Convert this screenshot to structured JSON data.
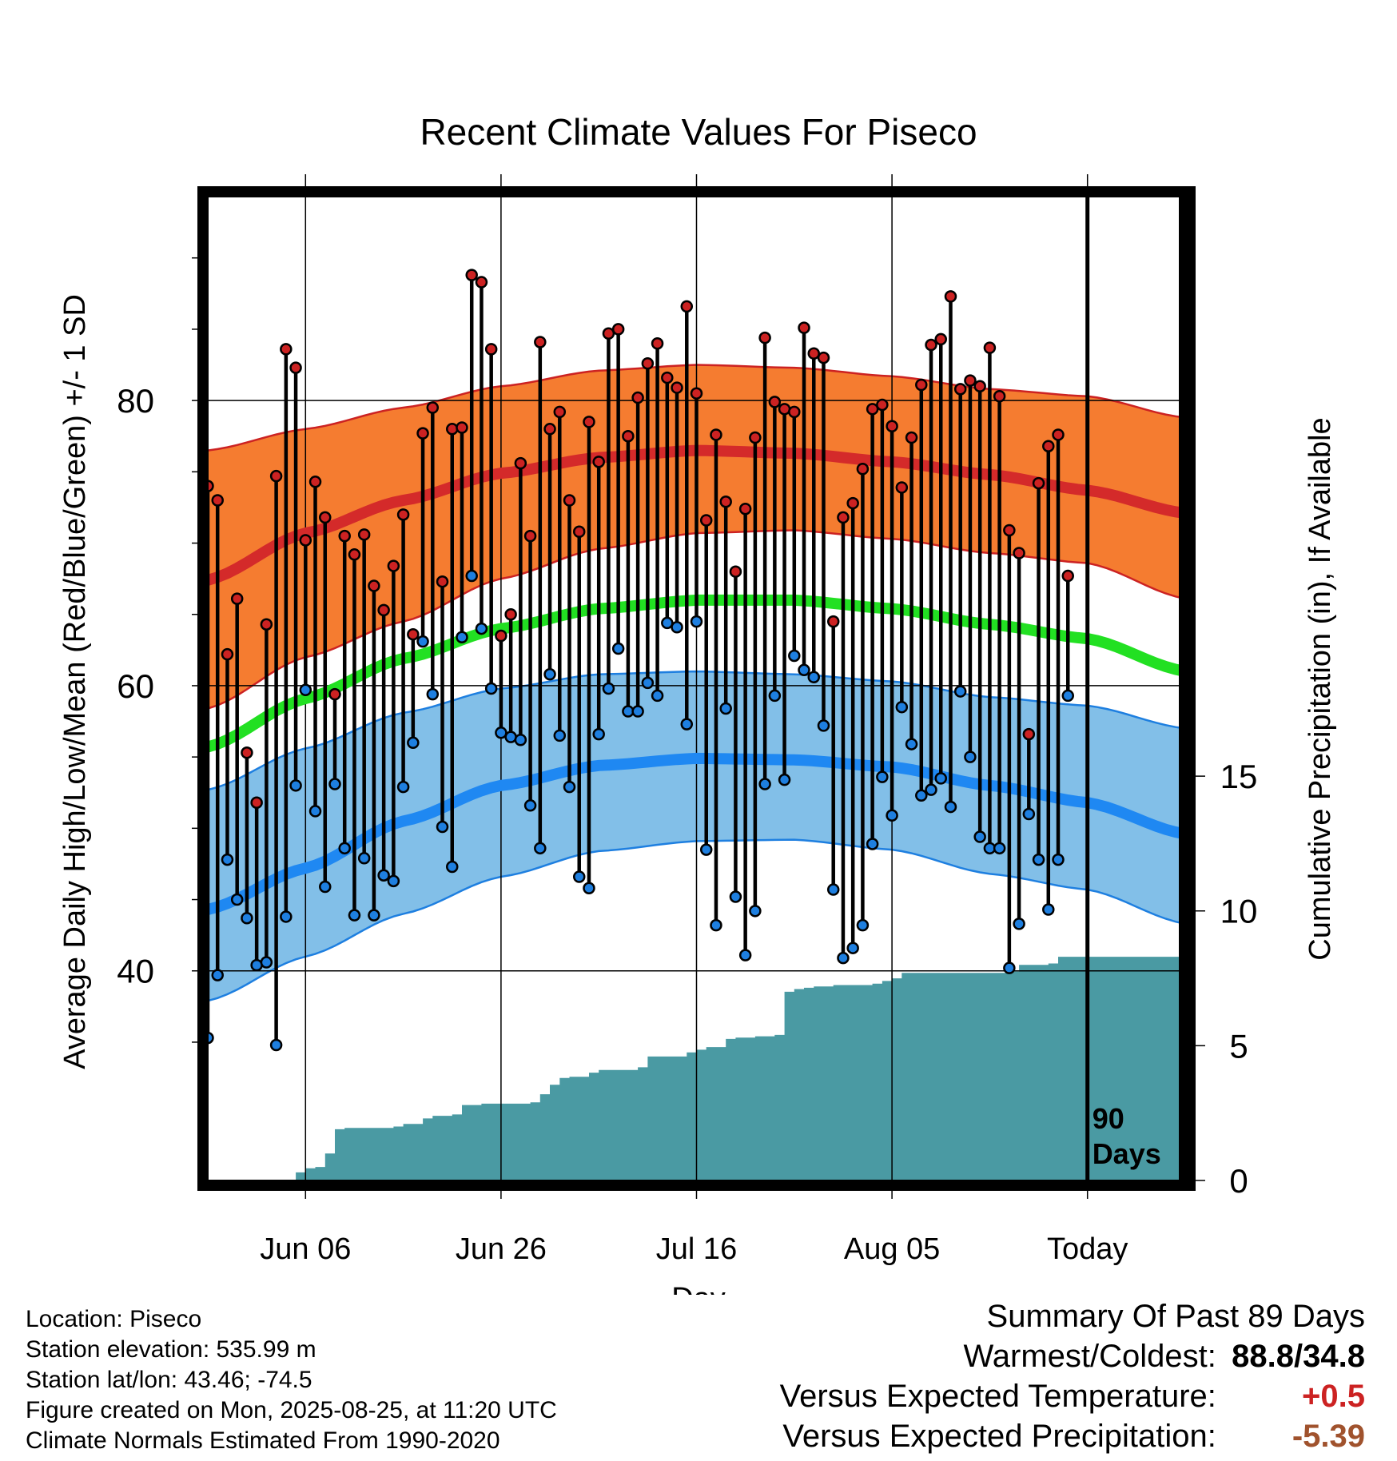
{
  "chart_data": {
    "type": "line",
    "title": "Recent Climate Values For Piseco",
    "xlabel": "Day",
    "ylabel": "Average Daily High/Low/Mean (Red/Blue/Green) +/- 1 SD",
    "y2label": "Cumulative Precipitation (in), If Available",
    "ylim": [
      25.3,
      94.3
    ],
    "y2lim": [
      0,
      36.5
    ],
    "yticks": [
      40,
      60,
      80
    ],
    "y2ticks": [
      0,
      5,
      10,
      15
    ],
    "x_range": [
      "2025-05-27",
      "2025-09-04"
    ],
    "xticks": [
      {
        "date": "2025-06-06",
        "label": "Jun 06"
      },
      {
        "date": "2025-06-26",
        "label": "Jun 26"
      },
      {
        "date": "2025-07-16",
        "label": "Jul 16"
      },
      {
        "date": "2025-08-05",
        "label": "Aug 05"
      },
      {
        "date": "2025-08-25",
        "label": "Today"
      }
    ],
    "window_marker": {
      "date": "2025-08-25",
      "label_line1": "90",
      "label_line2": "Days"
    },
    "grid": true,
    "series": [
      {
        "name": "High",
        "color": "#cc2222",
        "dates": [
          "2025-05-27",
          "2025-05-28",
          "2025-05-29",
          "2025-05-30",
          "2025-05-31",
          "2025-06-01",
          "2025-06-02",
          "2025-06-03",
          "2025-06-04",
          "2025-06-05",
          "2025-06-06",
          "2025-06-07",
          "2025-06-08",
          "2025-06-09",
          "2025-06-10",
          "2025-06-11",
          "2025-06-12",
          "2025-06-13",
          "2025-06-14",
          "2025-06-15",
          "2025-06-16",
          "2025-06-17",
          "2025-06-18",
          "2025-06-19",
          "2025-06-20",
          "2025-06-21",
          "2025-06-22",
          "2025-06-23",
          "2025-06-24",
          "2025-06-25",
          "2025-06-26",
          "2025-06-27",
          "2025-06-28",
          "2025-06-29",
          "2025-06-30",
          "2025-07-01",
          "2025-07-02",
          "2025-07-03",
          "2025-07-04",
          "2025-07-05",
          "2025-07-06",
          "2025-07-07",
          "2025-07-08",
          "2025-07-09",
          "2025-07-10",
          "2025-07-11",
          "2025-07-12",
          "2025-07-13",
          "2025-07-14",
          "2025-07-15",
          "2025-07-16",
          "2025-07-17",
          "2025-07-18",
          "2025-07-19",
          "2025-07-20",
          "2025-07-21",
          "2025-07-22",
          "2025-07-23",
          "2025-07-24",
          "2025-07-25",
          "2025-07-26",
          "2025-07-27",
          "2025-07-28",
          "2025-07-29",
          "2025-07-30",
          "2025-07-31",
          "2025-08-01",
          "2025-08-02",
          "2025-08-03",
          "2025-08-04",
          "2025-08-05",
          "2025-08-06",
          "2025-08-07",
          "2025-08-08",
          "2025-08-09",
          "2025-08-10",
          "2025-08-11",
          "2025-08-12",
          "2025-08-13",
          "2025-08-14",
          "2025-08-15",
          "2025-08-16",
          "2025-08-17",
          "2025-08-18",
          "2025-08-19",
          "2025-08-20",
          "2025-08-21",
          "2025-08-22",
          "2025-08-23"
        ],
        "values": [
          74.0,
          73.0,
          62.2,
          66.1,
          55.3,
          51.8,
          64.3,
          74.7,
          83.6,
          82.3,
          70.2,
          74.3,
          71.8,
          59.4,
          70.5,
          69.2,
          70.6,
          67.0,
          65.3,
          68.4,
          72.0,
          63.6,
          77.7,
          79.5,
          67.3,
          78.0,
          78.1,
          88.8,
          88.3,
          83.6,
          63.5,
          65.0,
          75.6,
          70.5,
          84.1,
          78.0,
          79.2,
          73.0,
          70.8,
          78.5,
          75.7,
          84.7,
          85.0,
          77.5,
          80.2,
          82.6,
          84.0,
          81.6,
          80.9,
          86.6,
          80.5,
          71.6,
          77.6,
          72.9,
          68.0,
          72.4,
          77.4,
          84.4,
          79.9,
          79.4,
          79.2,
          85.1,
          83.3,
          83.0,
          64.5,
          71.8,
          72.8,
          75.2,
          79.4,
          79.7,
          78.2,
          73.9,
          77.4,
          81.1,
          83.9,
          84.3,
          87.3,
          80.8,
          81.4,
          81.0,
          83.7,
          80.3,
          70.9,
          69.3,
          56.6,
          74.2,
          76.8,
          77.6,
          67.7
        ]
      },
      {
        "name": "Low",
        "color": "#1e7fe0",
        "dates": [
          "2025-05-27",
          "2025-05-28",
          "2025-05-29",
          "2025-05-30",
          "2025-05-31",
          "2025-06-01",
          "2025-06-02",
          "2025-06-03",
          "2025-06-04",
          "2025-06-05",
          "2025-06-06",
          "2025-06-07",
          "2025-06-08",
          "2025-06-09",
          "2025-06-10",
          "2025-06-11",
          "2025-06-12",
          "2025-06-13",
          "2025-06-14",
          "2025-06-15",
          "2025-06-16",
          "2025-06-17",
          "2025-06-18",
          "2025-06-19",
          "2025-06-20",
          "2025-06-21",
          "2025-06-22",
          "2025-06-23",
          "2025-06-24",
          "2025-06-25",
          "2025-06-26",
          "2025-06-27",
          "2025-06-28",
          "2025-06-29",
          "2025-06-30",
          "2025-07-01",
          "2025-07-02",
          "2025-07-03",
          "2025-07-04",
          "2025-07-05",
          "2025-07-06",
          "2025-07-07",
          "2025-07-08",
          "2025-07-09",
          "2025-07-10",
          "2025-07-11",
          "2025-07-12",
          "2025-07-13",
          "2025-07-14",
          "2025-07-15",
          "2025-07-16",
          "2025-07-17",
          "2025-07-18",
          "2025-07-19",
          "2025-07-20",
          "2025-07-21",
          "2025-07-22",
          "2025-07-23",
          "2025-07-24",
          "2025-07-25",
          "2025-07-26",
          "2025-07-27",
          "2025-07-28",
          "2025-07-29",
          "2025-07-30",
          "2025-07-31",
          "2025-08-01",
          "2025-08-02",
          "2025-08-03",
          "2025-08-04",
          "2025-08-05",
          "2025-08-06",
          "2025-08-07",
          "2025-08-08",
          "2025-08-09",
          "2025-08-10",
          "2025-08-11",
          "2025-08-12",
          "2025-08-13",
          "2025-08-14",
          "2025-08-15",
          "2025-08-16",
          "2025-08-17",
          "2025-08-18",
          "2025-08-19",
          "2025-08-20",
          "2025-08-21",
          "2025-08-22",
          "2025-08-23"
        ],
        "values": [
          35.3,
          39.7,
          47.8,
          45.0,
          43.7,
          40.4,
          40.6,
          34.8,
          43.8,
          53.0,
          59.7,
          51.2,
          45.9,
          53.1,
          48.6,
          43.9,
          47.9,
          43.9,
          46.7,
          46.3,
          52.9,
          56.0,
          63.1,
          59.4,
          50.1,
          47.3,
          63.4,
          67.7,
          64.0,
          59.8,
          56.7,
          56.4,
          56.2,
          51.6,
          48.6,
          60.8,
          56.5,
          52.9,
          46.6,
          45.8,
          56.6,
          59.8,
          62.6,
          58.2,
          58.2,
          60.2,
          59.3,
          64.4,
          64.1,
          57.3,
          64.5,
          48.5,
          43.2,
          58.4,
          45.2,
          41.1,
          44.2,
          53.1,
          59.3,
          53.4,
          62.1,
          61.1,
          60.6,
          57.2,
          45.7,
          40.9,
          41.6,
          43.2,
          48.9,
          53.6,
          50.9,
          58.5,
          55.9,
          52.3,
          52.7,
          53.5,
          51.5,
          59.6,
          55.0,
          49.4,
          48.6,
          48.6,
          40.2,
          43.3,
          51.0,
          47.8,
          44.3,
          47.8,
          59.3
        ]
      }
    ],
    "normals": {
      "dates": [
        "2025-05-27",
        "2025-06-06",
        "2025-06-16",
        "2025-06-26",
        "2025-07-06",
        "2025-07-16",
        "2025-07-26",
        "2025-08-05",
        "2025-08-15",
        "2025-08-25",
        "2025-09-04"
      ],
      "high_mean": [
        67.4,
        70.7,
        73.0,
        74.9,
        76.0,
        76.5,
        76.3,
        75.7,
        74.8,
        73.7,
        72.1
      ],
      "high_plus_sd": [
        76.5,
        78.0,
        79.5,
        81.0,
        82.1,
        82.5,
        82.3,
        81.7,
        80.8,
        80.3,
        78.8
      ],
      "high_minus_sd": [
        58.4,
        62.0,
        64.5,
        67.5,
        69.6,
        70.7,
        70.9,
        70.3,
        69.3,
        68.6,
        66.1
      ],
      "mean": [
        55.7,
        59.1,
        61.9,
        64.0,
        65.4,
        66.0,
        66.0,
        65.4,
        64.3,
        63.3,
        61.0
      ],
      "low_mean": [
        44.3,
        47.2,
        50.5,
        53.0,
        54.4,
        54.9,
        54.8,
        54.3,
        53.0,
        51.8,
        49.6
      ],
      "low_plus_sd": [
        52.7,
        55.6,
        58.1,
        59.8,
        60.8,
        61.0,
        60.8,
        60.3,
        59.2,
        58.6,
        57.0
      ],
      "low_minus_sd": [
        37.9,
        41.0,
        44.0,
        46.6,
        48.4,
        49.1,
        49.2,
        48.5,
        46.8,
        45.7,
        43.3
      ]
    },
    "precipitation": {
      "name": "Cumulative Precipitation",
      "color": "#4a9aa3",
      "dates": [
        "2025-05-27",
        "2025-06-05",
        "2025-06-06",
        "2025-06-07",
        "2025-06-08",
        "2025-06-09",
        "2025-06-10",
        "2025-06-11",
        "2025-06-15",
        "2025-06-16",
        "2025-06-18",
        "2025-06-19",
        "2025-06-21",
        "2025-06-22",
        "2025-06-24",
        "2025-06-29",
        "2025-06-30",
        "2025-07-01",
        "2025-07-02",
        "2025-07-03",
        "2025-07-05",
        "2025-07-06",
        "2025-07-07",
        "2025-07-10",
        "2025-07-11",
        "2025-07-14",
        "2025-07-15",
        "2025-07-16",
        "2025-07-17",
        "2025-07-19",
        "2025-07-20",
        "2025-07-22",
        "2025-07-24",
        "2025-07-25",
        "2025-07-26",
        "2025-07-27",
        "2025-07-28",
        "2025-07-30",
        "2025-08-03",
        "2025-08-04",
        "2025-08-05",
        "2025-08-06",
        "2025-08-17",
        "2025-08-18",
        "2025-08-21",
        "2025-08-22",
        "2025-09-04"
      ],
      "values": [
        0.0,
        0.3,
        0.45,
        0.5,
        1.0,
        1.9,
        1.95,
        1.95,
        2.0,
        2.1,
        2.3,
        2.4,
        2.45,
        2.8,
        2.85,
        2.9,
        3.2,
        3.55,
        3.8,
        3.85,
        4.0,
        4.1,
        4.1,
        4.2,
        4.6,
        4.6,
        4.75,
        4.85,
        4.95,
        5.25,
        5.3,
        5.35,
        5.4,
        7.0,
        7.1,
        7.15,
        7.2,
        7.25,
        7.3,
        7.4,
        7.5,
        7.7,
        7.75,
        8.0,
        8.05,
        8.3,
        8.3
      ]
    }
  },
  "info": {
    "location": "Location: Piseco",
    "elevation": "Station elevation: 535.99 m",
    "latlon": "Station lat/lon: 43.46; -74.5",
    "created": "Figure created on Mon, 2025-08-25, at 11:20 UTC",
    "normals": "Climate Normals Estimated From 1990-2020"
  },
  "summary": {
    "title": "Summary Of Past 89 Days",
    "warm_cold_label": "Warmest/Coldest:",
    "warm_cold_value": "88.8/34.8",
    "temp_label": "Versus Expected Temperature:",
    "temp_value": "+0.5",
    "temp_color": "#cc2222",
    "precip_label": "Versus Expected Precipitation:",
    "precip_value": "-5.39",
    "precip_color": "#a0522d"
  }
}
